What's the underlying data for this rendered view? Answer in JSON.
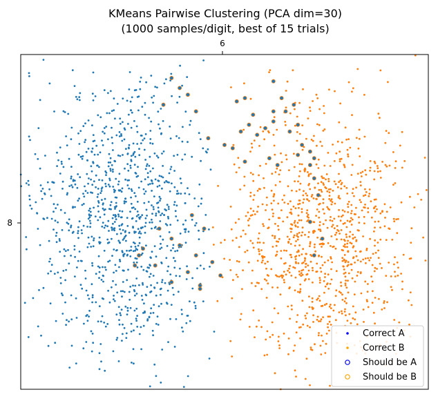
{
  "chart_data": {
    "type": "scatter",
    "title": "KMeans Pairwise Clustering (PCA dim=30)",
    "subtitle": "(1000 samples/digit, best of 15 trials)",
    "x_tick_label": "6",
    "y_tick_label": "8",
    "axes": {
      "x_ticks_position": "top",
      "y_ticks_position": "left",
      "grid": false
    },
    "legend": {
      "placement": "bottom-right",
      "entries": [
        {
          "label": "Correct A",
          "marker": "dot",
          "color": "#0000ff"
        },
        {
          "label": "Correct B",
          "marker": "dot",
          "color": "#ffa500"
        },
        {
          "label": "Should be A",
          "marker": "ring",
          "color": "#0000ff"
        },
        {
          "label": "Should be B",
          "marker": "ring",
          "color": "#ffa500"
        }
      ]
    },
    "series": [
      {
        "key": "cluster_A",
        "color": "#1f77b4",
        "count": 1000,
        "x_range": [
          0.0,
          0.48
        ],
        "y_range": [
          0.0,
          1.0
        ]
      },
      {
        "key": "cluster_B",
        "color": "#ff7f0e",
        "count": 1000,
        "x_range": [
          0.45,
          1.0
        ],
        "y_range": [
          0.0,
          1.0
        ]
      }
    ],
    "highlighted_points": {
      "ring_blue_on_orange": [
        [
          0.37,
          0.07
        ],
        [
          0.39,
          0.1
        ],
        [
          0.41,
          0.12
        ],
        [
          0.35,
          0.15
        ],
        [
          0.43,
          0.17
        ],
        [
          0.53,
          0.14
        ],
        [
          0.55,
          0.13
        ],
        [
          0.57,
          0.18
        ],
        [
          0.62,
          0.08
        ],
        [
          0.64,
          0.13
        ],
        [
          0.62,
          0.17
        ],
        [
          0.66,
          0.23
        ],
        [
          0.68,
          0.21
        ],
        [
          0.69,
          0.27
        ],
        [
          0.68,
          0.3
        ],
        [
          0.71,
          0.29
        ],
        [
          0.72,
          0.31
        ],
        [
          0.63,
          0.33
        ],
        [
          0.61,
          0.31
        ],
        [
          0.55,
          0.32
        ],
        [
          0.52,
          0.28
        ],
        [
          0.5,
          0.27
        ],
        [
          0.54,
          0.23
        ],
        [
          0.56,
          0.21
        ],
        [
          0.58,
          0.24
        ],
        [
          0.6,
          0.22
        ],
        [
          0.62,
          0.2
        ],
        [
          0.65,
          0.17
        ],
        [
          0.67,
          0.15
        ],
        [
          0.46,
          0.25
        ],
        [
          0.71,
          0.33
        ],
        [
          0.72,
          0.37
        ],
        [
          0.73,
          0.42
        ],
        [
          0.71,
          0.5
        ],
        [
          0.74,
          0.55
        ],
        [
          0.72,
          0.6
        ],
        [
          0.42,
          0.48
        ],
        [
          0.45,
          0.52
        ],
        [
          0.47,
          0.62
        ],
        [
          0.49,
          0.66
        ],
        [
          0.44,
          0.7
        ],
        [
          0.41,
          0.65
        ],
        [
          0.43,
          0.6
        ],
        [
          0.39,
          0.57
        ],
        [
          0.37,
          0.55
        ],
        [
          0.34,
          0.52
        ],
        [
          0.3,
          0.58
        ],
        [
          0.29,
          0.6
        ],
        [
          0.28,
          0.63
        ],
        [
          0.33,
          0.63
        ],
        [
          0.37,
          0.68
        ],
        [
          0.44,
          0.69
        ]
      ]
    }
  }
}
